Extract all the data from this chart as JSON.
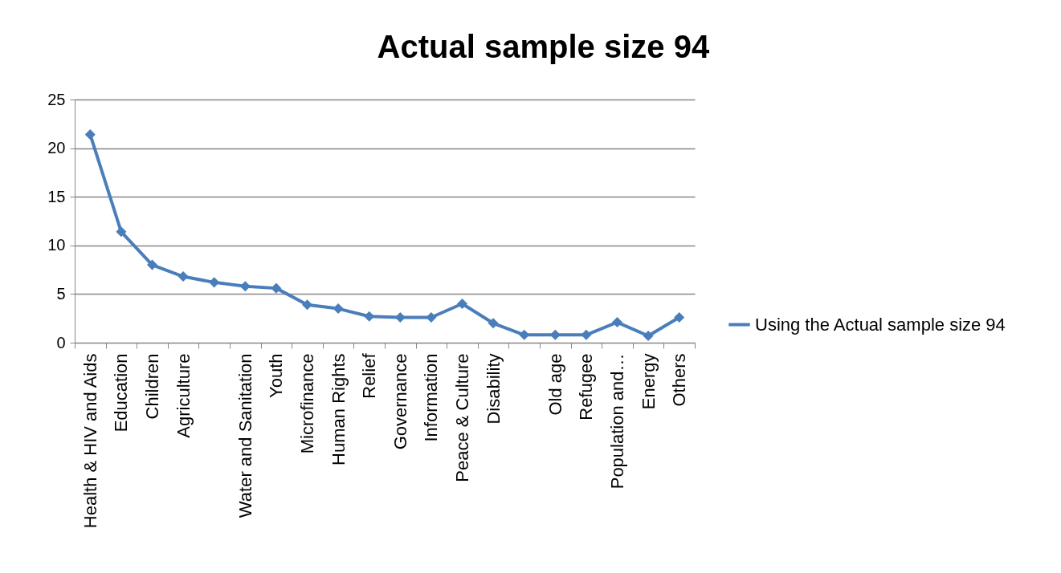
{
  "chart_data": {
    "type": "line",
    "title": "Actual sample size 94",
    "categories": [
      "Health & HIV and Aids",
      "Education",
      "Children",
      "Agriculture",
      null,
      "Water and Sanitation",
      "Youth",
      "Microfinance",
      "Human Rights",
      "Relief",
      "Governance",
      "Information",
      "Peace & Culture",
      "Disability",
      null,
      "Old age",
      "Refugee",
      "Population and…",
      "Energy",
      "Others"
    ],
    "series": [
      {
        "name": "Using the Actual sample size 94",
        "color": "#4a7ebb",
        "values": [
          21.4,
          11.4,
          8.0,
          6.8,
          6.2,
          5.8,
          5.6,
          3.9,
          3.5,
          2.7,
          2.6,
          2.6,
          4.0,
          2.0,
          0.8,
          0.8,
          0.8,
          2.1,
          0.7,
          2.6
        ]
      }
    ],
    "ylim": [
      0,
      25
    ],
    "yticks": [
      0,
      5,
      10,
      15,
      20,
      25
    ],
    "grid": "y",
    "legend": "right",
    "marker": "diamond",
    "line_style": "solid"
  }
}
